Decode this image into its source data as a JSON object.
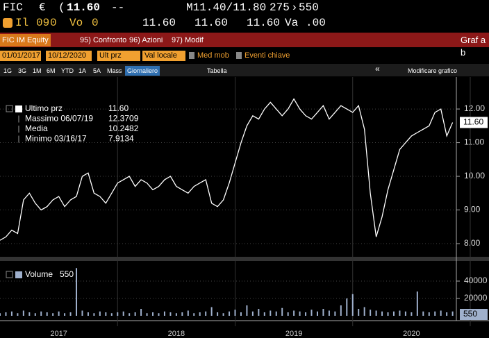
{
  "quote_bar": {
    "ticker": "FIC",
    "currency": "€",
    "last": "11.60",
    "change": "--",
    "bid_ask": "M11.40/11.80",
    "bid_size": "275",
    "ask_size": "550"
  },
  "quote_bar_2": [
    "Il",
    "09",
    "0",
    "Vo",
    "0",
    "11.60",
    "11.60",
    "11.60",
    "Va",
    ".00"
  ],
  "function_bar": {
    "security": "FIC IM Equity",
    "tabs": [
      "95) Confronto",
      "96) Azioni",
      "97) Modif"
    ],
    "right": "Graf a b"
  },
  "settings_bar": {
    "start": "01/01/2017",
    "end": "10/12/2020",
    "field": "Ult prz",
    "currency": "Val locale",
    "options": [
      "Med mob",
      "Eventi chiave"
    ]
  },
  "range_bar": {
    "ranges": [
      "1G",
      "3G",
      "1M",
      "6M",
      "YTD",
      "1A",
      "5A",
      "Mass"
    ],
    "period": "Giornaliero",
    "table": "Tabella",
    "edit": "Modificare grafico"
  },
  "chart_data": [
    {
      "type": "line",
      "legend_items": [
        {
          "label": "Ultimo prz",
          "value": "11.60"
        },
        {
          "label": "Massimo 06/07/19",
          "value": "12.3709"
        },
        {
          "label": "Media",
          "value": "10.2482"
        },
        {
          "label": "Minimo 03/16/17",
          "value": "7.9134"
        }
      ],
      "x": [
        2017.0,
        2017.05,
        2017.1,
        2017.15,
        2017.2,
        2017.25,
        2017.3,
        2017.35,
        2017.4,
        2017.45,
        2017.5,
        2017.55,
        2017.6,
        2017.65,
        2017.7,
        2017.75,
        2017.8,
        2017.85,
        2017.9,
        2017.95,
        2018.0,
        2018.05,
        2018.1,
        2018.15,
        2018.2,
        2018.25,
        2018.3,
        2018.35,
        2018.4,
        2018.45,
        2018.5,
        2018.55,
        2018.6,
        2018.65,
        2018.7,
        2018.75,
        2018.8,
        2018.85,
        2018.9,
        2018.95,
        2019.0,
        2019.05,
        2019.1,
        2019.15,
        2019.2,
        2019.25,
        2019.3,
        2019.35,
        2019.4,
        2019.45,
        2019.5,
        2019.55,
        2019.6,
        2019.65,
        2019.7,
        2019.75,
        2019.8,
        2019.85,
        2019.9,
        2019.95,
        2020.0,
        2020.05,
        2020.1,
        2020.15,
        2020.2,
        2020.25,
        2020.3,
        2020.35,
        2020.4,
        2020.45,
        2020.5,
        2020.55,
        2020.6,
        2020.65,
        2020.7,
        2020.75,
        2020.8,
        2020.85
      ],
      "series": [
        {
          "name": "Ultimo prz",
          "color": "#ffffff",
          "values": [
            8.1,
            8.2,
            8.4,
            8.3,
            9.3,
            9.5,
            9.2,
            9.0,
            9.1,
            9.3,
            9.4,
            9.1,
            9.3,
            9.4,
            10.0,
            10.1,
            9.5,
            9.4,
            9.2,
            9.5,
            9.8,
            9.9,
            10.0,
            9.7,
            9.9,
            9.8,
            9.6,
            9.7,
            9.9,
            10.0,
            9.7,
            9.6,
            9.5,
            9.7,
            9.8,
            9.9,
            9.2,
            9.1,
            9.3,
            9.8,
            10.4,
            11.0,
            11.5,
            11.8,
            11.7,
            12.0,
            12.2,
            12.0,
            11.8,
            12.0,
            12.3,
            12.0,
            11.8,
            11.7,
            11.9,
            12.1,
            11.7,
            11.9,
            12.1,
            12.0,
            11.9,
            12.1,
            11.4,
            9.5,
            8.2,
            8.8,
            9.6,
            10.2,
            10.8,
            11.0,
            11.2,
            11.3,
            11.4,
            11.5,
            11.9,
            12.0,
            11.2,
            11.6
          ]
        }
      ],
      "xlim": [
        2017.0,
        2020.87
      ],
      "xticks": [
        {
          "value": 2017.5,
          "label": "2017"
        },
        {
          "value": 2018.5,
          "label": "2018"
        },
        {
          "value": 2019.5,
          "label": "2019"
        },
        {
          "value": 2020.5,
          "label": "2020"
        }
      ],
      "ylim": [
        7.65,
        12.95
      ],
      "yticks": [
        {
          "value": 8,
          "label": "8.00"
        },
        {
          "value": 9,
          "label": "9.00"
        },
        {
          "value": 10,
          "label": "10.00"
        },
        {
          "value": 11,
          "label": "11.00"
        },
        {
          "value": 12,
          "label": "12.00"
        }
      ],
      "grid": true
    },
    {
      "type": "bar",
      "legend_items": [
        {
          "label": "Volume",
          "value": "550"
        }
      ],
      "x": [
        2017.0,
        2017.05,
        2017.1,
        2017.15,
        2017.2,
        2017.25,
        2017.3,
        2017.35,
        2017.4,
        2017.45,
        2017.5,
        2017.55,
        2017.6,
        2017.65,
        2017.7,
        2017.75,
        2017.8,
        2017.85,
        2017.9,
        2017.95,
        2018.0,
        2018.05,
        2018.1,
        2018.15,
        2018.2,
        2018.25,
        2018.3,
        2018.35,
        2018.4,
        2018.45,
        2018.5,
        2018.55,
        2018.6,
        2018.65,
        2018.7,
        2018.75,
        2018.8,
        2018.85,
        2018.9,
        2018.95,
        2019.0,
        2019.05,
        2019.1,
        2019.15,
        2019.2,
        2019.25,
        2019.3,
        2019.35,
        2019.4,
        2019.45,
        2019.5,
        2019.55,
        2019.6,
        2019.65,
        2019.7,
        2019.75,
        2019.8,
        2019.85,
        2019.9,
        2019.95,
        2020.0,
        2020.05,
        2020.1,
        2020.15,
        2020.2,
        2020.25,
        2020.3,
        2020.35,
        2020.4,
        2020.45,
        2020.5,
        2020.55,
        2020.6,
        2020.65,
        2020.7,
        2020.75,
        2020.8,
        2020.85
      ],
      "series": [
        {
          "name": "Volume",
          "color": "#9fb0cc",
          "values": [
            3000,
            4000,
            5000,
            3000,
            6000,
            4000,
            3000,
            5000,
            4000,
            3000,
            5000,
            3000,
            4000,
            55000,
            6000,
            4000,
            3000,
            5000,
            4000,
            3000,
            4000,
            5000,
            3000,
            4000,
            8000,
            3000,
            4000,
            3000,
            5000,
            4000,
            3000,
            4000,
            6000,
            3000,
            4000,
            5000,
            10000,
            4000,
            3000,
            5000,
            7000,
            4000,
            12000,
            5000,
            8000,
            4000,
            6000,
            5000,
            9000,
            4000,
            6000,
            5000,
            4000,
            7000,
            5000,
            8000,
            6000,
            5000,
            12000,
            20000,
            25000,
            8000,
            10000,
            7000,
            6000,
            5000,
            4000,
            5000,
            6000,
            5000,
            4000,
            28000,
            5000,
            4000,
            5000,
            6000,
            4000,
            5000
          ]
        }
      ],
      "xlim": [
        2017.0,
        2020.87
      ],
      "ylim": [
        0,
        60000
      ],
      "yticks": [
        20000,
        40000
      ],
      "grid": true
    }
  ]
}
